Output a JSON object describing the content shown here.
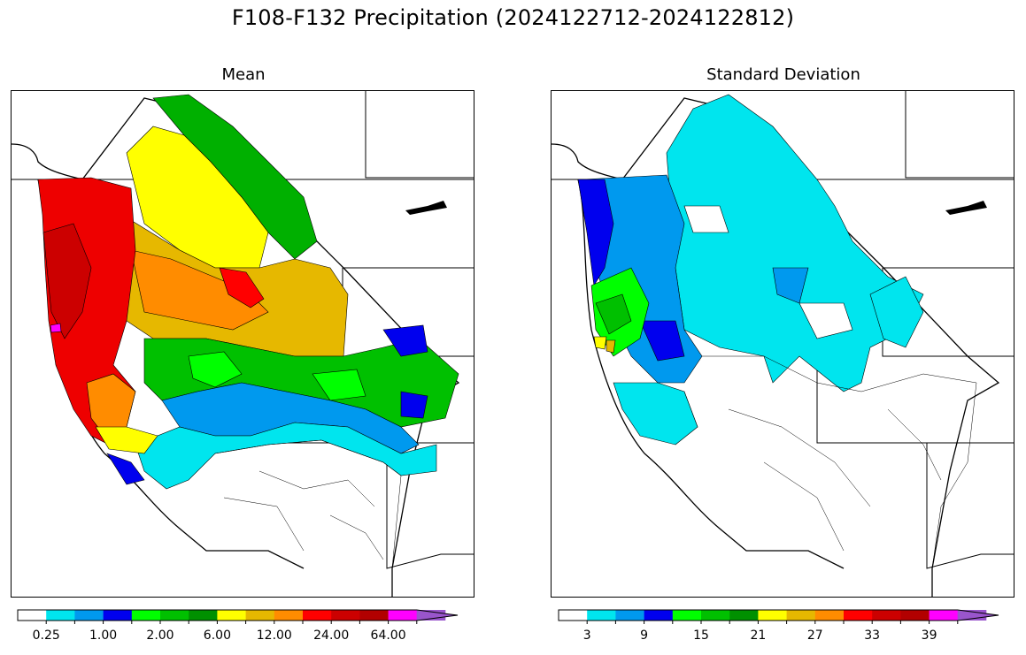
{
  "title": "F108-F132 Precipitation (2024122712-2024122812)",
  "panels": [
    {
      "id": "mean",
      "title": "Mean",
      "colorbar": {
        "colors": [
          "#ffffff",
          "#00e5ee",
          "#0099ee",
          "#0000ee",
          "#00ff00",
          "#00c000",
          "#009000",
          "#ffff00",
          "#e6b800",
          "#ff8c00",
          "#ff0000",
          "#cc0000",
          "#b20000",
          "#ff00ff",
          "#9955cc"
        ],
        "tick_labels": [
          "0.25",
          "1.00",
          "2.00",
          "6.00",
          "12.00",
          "24.00",
          "64.00"
        ],
        "extend": "max"
      }
    },
    {
      "id": "stddev",
      "title": "Standard Deviation",
      "colorbar": {
        "colors": [
          "#ffffff",
          "#00e5ee",
          "#0099ee",
          "#0000ee",
          "#00ff00",
          "#00c000",
          "#009000",
          "#ffff00",
          "#e6b800",
          "#ff8c00",
          "#ff0000",
          "#cc0000",
          "#b20000",
          "#ff00ff",
          "#9955cc"
        ],
        "tick_labels": [
          "3",
          "9",
          "15",
          "21",
          "27",
          "33",
          "39"
        ],
        "extend": "max"
      }
    }
  ]
}
